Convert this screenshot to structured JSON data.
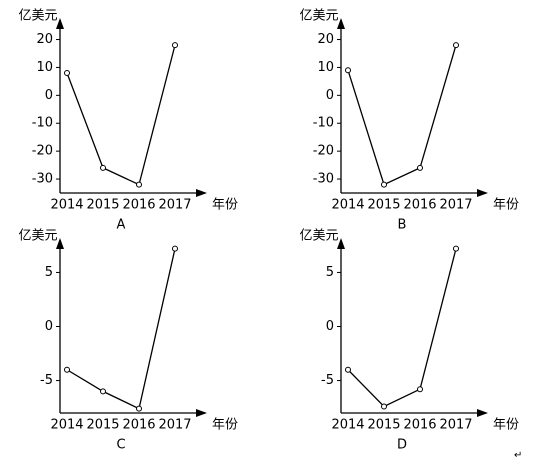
{
  "chart_data": [
    {
      "type": "line",
      "title": "A",
      "y_label": "亿美元",
      "x_label": "年份",
      "categories": [
        "2014",
        "2015",
        "2016",
        "2017"
      ],
      "values": [
        8,
        -26,
        -32,
        18
      ],
      "color": "#000000",
      "ylim": [
        -35,
        27
      ],
      "yticks": [
        20,
        10,
        0,
        -10,
        -20,
        -30
      ]
    },
    {
      "type": "line",
      "title": "B",
      "y_label": "亿美元",
      "x_label": "年份",
      "categories": [
        "2014",
        "2015",
        "2016",
        "2017"
      ],
      "values": [
        9,
        -32,
        -26,
        18
      ],
      "color": "#000000",
      "ylim": [
        -35,
        27
      ],
      "yticks": [
        20,
        10,
        0,
        -10,
        -20,
        -30
      ]
    },
    {
      "type": "line",
      "title": "C",
      "y_label": "亿美元",
      "x_label": "年份",
      "categories": [
        "2014",
        "2015",
        "2016",
        "2017"
      ],
      "values": [
        -4,
        -6,
        -7.6,
        7.2
      ],
      "color": "#000000",
      "ylim": [
        -8,
        8
      ],
      "yticks": [
        5,
        0,
        -5
      ]
    },
    {
      "type": "line",
      "title": "D",
      "y_label": "亿美元",
      "x_label": "年份",
      "categories": [
        "2014",
        "2015",
        "2016",
        "2017"
      ],
      "values": [
        -4,
        -7.4,
        -5.8,
        7.2
      ],
      "color": "#000000",
      "ylim": [
        -8,
        8
      ],
      "yticks": [
        5,
        0,
        -5
      ]
    }
  ],
  "footer_mark": "↵"
}
